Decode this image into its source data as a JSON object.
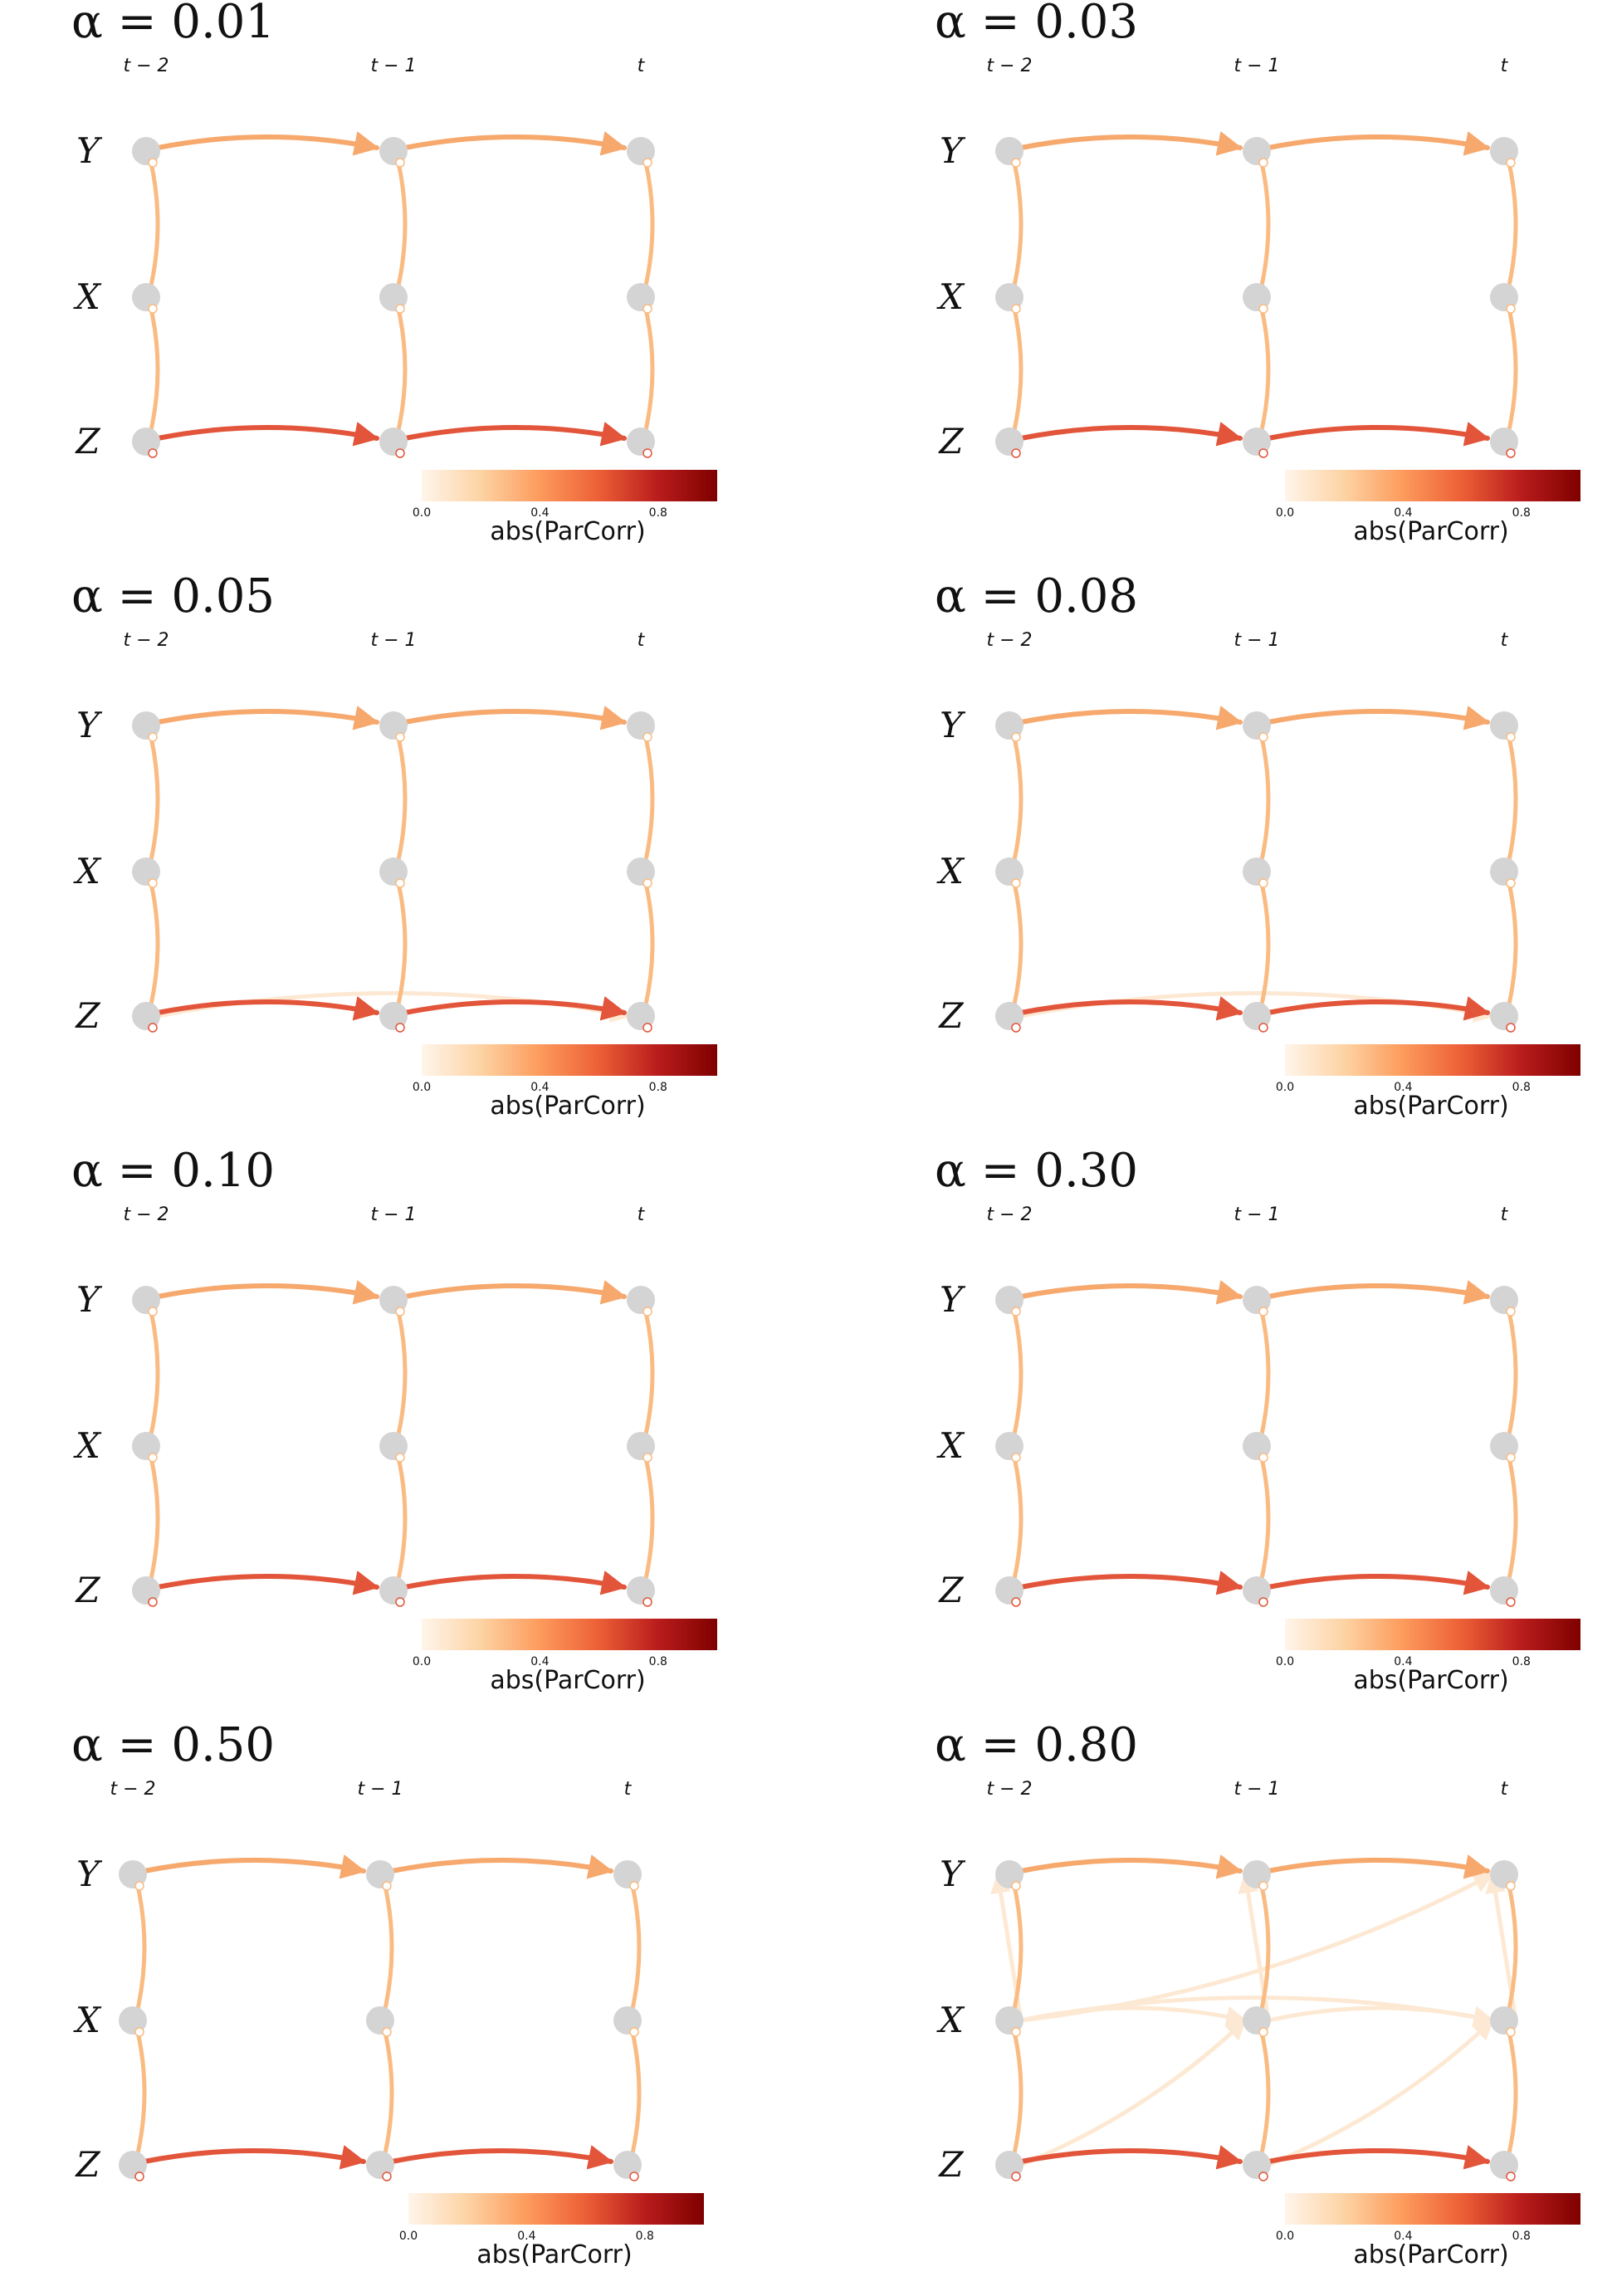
{
  "panels": [
    {
      "title": "α = 0.01",
      "lag_labels": [
        "t − 2",
        "t − 1",
        "t"
      ],
      "var_labels": [
        "Y",
        "X",
        "Z"
      ],
      "colorbar": {
        "label": "abs(ParCorr)",
        "ticks": [
          "0.0",
          "0.4",
          "0.8"
        ]
      },
      "extra_links": []
    },
    {
      "title": "α = 0.03",
      "lag_labels": [
        "t − 2",
        "t − 1",
        "t"
      ],
      "var_labels": [
        "Y",
        "X",
        "Z"
      ],
      "colorbar": {
        "label": "abs(ParCorr)",
        "ticks": [
          "0.0",
          "0.4",
          "0.8"
        ]
      },
      "extra_links": []
    },
    {
      "title": "α = 0.05",
      "lag_labels": [
        "t − 2",
        "t − 1",
        "t"
      ],
      "var_labels": [
        "Y",
        "X",
        "Z"
      ],
      "colorbar": {
        "label": "abs(ParCorr)",
        "ticks": [
          "0.0",
          "0.4",
          "0.8"
        ]
      },
      "extra_links": [
        "Z(t−2)→Z(t)"
      ]
    },
    {
      "title": "α = 0.08",
      "lag_labels": [
        "t − 2",
        "t − 1",
        "t"
      ],
      "var_labels": [
        "Y",
        "X",
        "Z"
      ],
      "colorbar": {
        "label": "abs(ParCorr)",
        "ticks": [
          "0.0",
          "0.4",
          "0.8"
        ]
      },
      "extra_links": [
        "Z(t−2)→Z(t)"
      ]
    },
    {
      "title": "α = 0.10",
      "lag_labels": [
        "t − 2",
        "t − 1",
        "t"
      ],
      "var_labels": [
        "Y",
        "X",
        "Z"
      ],
      "colorbar": {
        "label": "abs(ParCorr)",
        "ticks": [
          "0.0",
          "0.4",
          "0.8"
        ]
      },
      "extra_links": []
    },
    {
      "title": "α = 0.30",
      "lag_labels": [
        "t − 2",
        "t − 1",
        "t"
      ],
      "var_labels": [
        "Y",
        "X",
        "Z"
      ],
      "colorbar": {
        "label": "abs(ParCorr)",
        "ticks": [
          "0.0",
          "0.4",
          "0.8"
        ]
      },
      "extra_links": []
    },
    {
      "title": "α = 0.50",
      "lag_labels": [
        "t − 2",
        "t − 1",
        "t"
      ],
      "var_labels": [
        "Y",
        "X",
        "Z"
      ],
      "colorbar": {
        "label": "abs(ParCorr)",
        "ticks": [
          "0.0",
          "0.4",
          "0.8"
        ]
      },
      "extra_links": []
    },
    {
      "title": "α = 0.80",
      "lag_labels": [
        "t − 2",
        "t − 1",
        "t"
      ],
      "var_labels": [
        "Y",
        "X",
        "Z"
      ],
      "colorbar": {
        "label": "abs(ParCorr)",
        "ticks": [
          "0.0",
          "0.4",
          "0.8"
        ]
      },
      "extra_links": [
        "X(t−2)→Y(t−2)",
        "X(t−1)→Y(t−1)",
        "X(t)→Y(t)",
        "X(t−2)→X(t−1)",
        "X(t−1)→X(t)",
        "X(t−2)→Y(t)",
        "Z(t−2)→X(t−1)",
        "Z(t−1)→X(t)",
        "X(t−2)→X(t)"
      ]
    }
  ],
  "colors": {
    "node": "#d4d4d4",
    "y_link": "#f6a86d",
    "z_link": "#e2553a",
    "contemp_link": "#f9bb82",
    "weak_link": "#fde9d3",
    "colormap": [
      "#fff5eb",
      "#fdd3a4",
      "#fd9b5c",
      "#ec5f36",
      "#b91c1c",
      "#7f0000"
    ]
  }
}
